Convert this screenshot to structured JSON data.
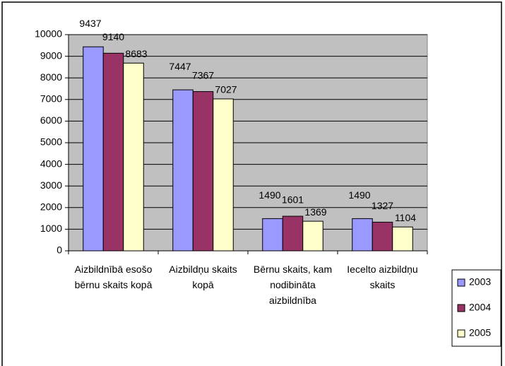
{
  "chart_data": {
    "type": "bar",
    "categories": [
      "Aizbildnībā esošo bērnu skaits kopā",
      "Aizbildņu skaits kopā",
      "Bērnu skaits, kam nodibināta aizbildnība",
      "Iecelto aizbildņu skaits"
    ],
    "series": [
      {
        "name": "2003",
        "color": "#9999ff",
        "values": [
          9437,
          7447,
          1490,
          1490
        ]
      },
      {
        "name": "2004",
        "color": "#993366",
        "values": [
          9140,
          7367,
          1601,
          1327
        ]
      },
      {
        "name": "2005",
        "color": "#ffffcc",
        "values": [
          8683,
          7027,
          1369,
          1104
        ]
      }
    ],
    "ylim": [
      0,
      10000
    ],
    "yticks": [
      0,
      1000,
      2000,
      3000,
      4000,
      5000,
      6000,
      7000,
      8000,
      9000,
      10000
    ],
    "grid": true,
    "legend": "right"
  }
}
